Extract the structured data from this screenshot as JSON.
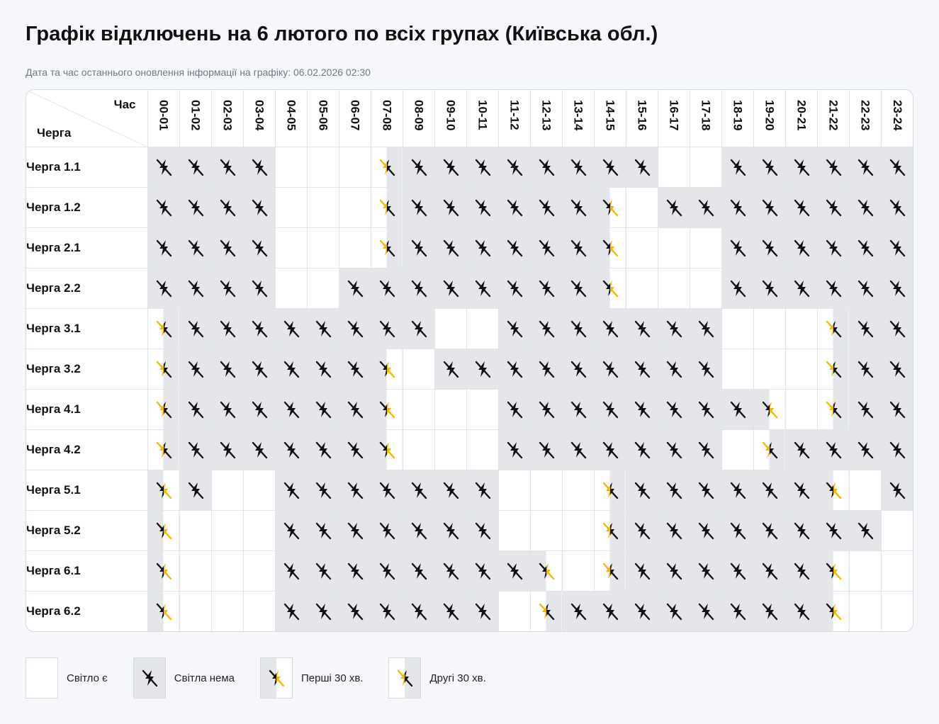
{
  "title": "Графік відключень на 6 лютого по всіх групах (Київська обл.)",
  "updated_text": "Дата та час останнього оновлення інформації на графіку: 06.02.2026 02:30",
  "corner": {
    "time_label": "Час",
    "queue_label": "Черга"
  },
  "hours": [
    "00-01",
    "01-02",
    "02-03",
    "03-04",
    "04-05",
    "05-06",
    "06-07",
    "07-08",
    "08-09",
    "09-10",
    "10-11",
    "11-12",
    "12-13",
    "13-14",
    "14-15",
    "15-16",
    "16-17",
    "17-18",
    "18-19",
    "19-20",
    "20-21",
    "21-22",
    "22-23",
    "23-24"
  ],
  "legend_codes": {
    "0": "on",
    "1": "off",
    "2": "first-30",
    "3": "second-30"
  },
  "rows": [
    {
      "label": "Черга 1.1",
      "cells": [
        1,
        1,
        1,
        1,
        0,
        0,
        0,
        3,
        1,
        1,
        1,
        1,
        1,
        1,
        1,
        1,
        0,
        0,
        1,
        1,
        1,
        1,
        1,
        1
      ]
    },
    {
      "label": "Черга 1.2",
      "cells": [
        1,
        1,
        1,
        1,
        0,
        0,
        0,
        3,
        1,
        1,
        1,
        1,
        1,
        1,
        2,
        0,
        1,
        1,
        1,
        1,
        1,
        1,
        1,
        1
      ]
    },
    {
      "label": "Черга 2.1",
      "cells": [
        1,
        1,
        1,
        1,
        0,
        0,
        0,
        3,
        1,
        1,
        1,
        1,
        1,
        1,
        2,
        0,
        0,
        0,
        1,
        1,
        1,
        1,
        1,
        1
      ]
    },
    {
      "label": "Черга 2.2",
      "cells": [
        1,
        1,
        1,
        1,
        0,
        0,
        1,
        1,
        1,
        1,
        1,
        1,
        1,
        1,
        2,
        0,
        0,
        0,
        1,
        1,
        1,
        1,
        1,
        1
      ]
    },
    {
      "label": "Черга 3.1",
      "cells": [
        3,
        1,
        1,
        1,
        1,
        1,
        1,
        1,
        1,
        0,
        0,
        1,
        1,
        1,
        1,
        1,
        1,
        1,
        0,
        0,
        0,
        3,
        1,
        1
      ]
    },
    {
      "label": "Черга 3.2",
      "cells": [
        3,
        1,
        1,
        1,
        1,
        1,
        1,
        2,
        0,
        1,
        1,
        1,
        1,
        1,
        1,
        1,
        1,
        1,
        0,
        0,
        0,
        3,
        1,
        1
      ]
    },
    {
      "label": "Черга 4.1",
      "cells": [
        3,
        1,
        1,
        1,
        1,
        1,
        1,
        2,
        0,
        0,
        0,
        1,
        1,
        1,
        1,
        1,
        1,
        1,
        1,
        2,
        0,
        3,
        1,
        1
      ]
    },
    {
      "label": "Черга 4.2",
      "cells": [
        3,
        1,
        1,
        1,
        1,
        1,
        1,
        2,
        0,
        0,
        0,
        1,
        1,
        1,
        1,
        1,
        1,
        1,
        0,
        3,
        1,
        1,
        1,
        1
      ]
    },
    {
      "label": "Черга 5.1",
      "cells": [
        2,
        1,
        0,
        0,
        1,
        1,
        1,
        1,
        1,
        1,
        1,
        0,
        0,
        0,
        3,
        1,
        1,
        1,
        1,
        1,
        1,
        2,
        0,
        1
      ]
    },
    {
      "label": "Черга 5.2",
      "cells": [
        2,
        0,
        0,
        0,
        1,
        1,
        1,
        1,
        1,
        1,
        1,
        0,
        0,
        0,
        3,
        1,
        1,
        1,
        1,
        1,
        1,
        1,
        1,
        0
      ]
    },
    {
      "label": "Черга 6.1",
      "cells": [
        2,
        0,
        0,
        0,
        1,
        1,
        1,
        1,
        1,
        1,
        1,
        1,
        2,
        0,
        3,
        1,
        1,
        1,
        1,
        1,
        1,
        2,
        0,
        0
      ]
    },
    {
      "label": "Черга 6.2",
      "cells": [
        2,
        0,
        0,
        0,
        1,
        1,
        1,
        1,
        1,
        1,
        1,
        0,
        3,
        1,
        1,
        1,
        1,
        1,
        1,
        1,
        1,
        2,
        0,
        0
      ]
    }
  ],
  "legend": [
    {
      "label": "Світло є",
      "type": "on"
    },
    {
      "label": "Світла нема",
      "type": "off"
    },
    {
      "label": "Перші 30 хв.",
      "type": "first-30"
    },
    {
      "label": "Другі 30 хв.",
      "type": "second-30"
    }
  ],
  "colors": {
    "off_fill": "#e4e6ea",
    "icon_dark": "#111111",
    "icon_accent": "#f5b800"
  }
}
